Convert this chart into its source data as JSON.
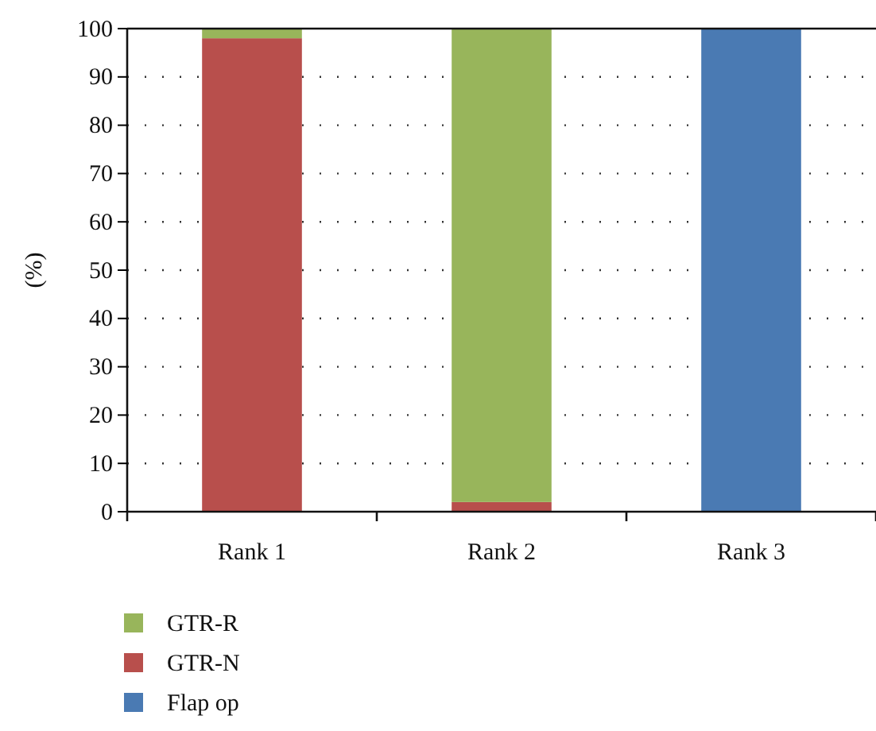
{
  "chart_data": {
    "type": "bar",
    "stacked": true,
    "ylabel": "(%)",
    "categories": [
      "Rank 1",
      "Rank 2",
      "Rank 3"
    ],
    "series": [
      {
        "name": "Flap op",
        "color": "#4a7ab3",
        "values": [
          0,
          0,
          100
        ]
      },
      {
        "name": "GTR-N",
        "color": "#b84f4c",
        "values": [
          98,
          2,
          0
        ]
      },
      {
        "name": "GTR-R",
        "color": "#98b55b",
        "values": [
          2,
          98,
          0
        ]
      }
    ],
    "ylim": [
      0,
      100
    ],
    "yticks": [
      0,
      10,
      20,
      30,
      40,
      50,
      60,
      70,
      80,
      90,
      100
    ],
    "grid": "y",
    "legend": "bottom"
  }
}
